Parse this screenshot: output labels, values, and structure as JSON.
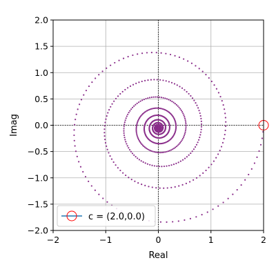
{
  "chart_data": {
    "type": "scatter",
    "title": "",
    "xlabel": "Real",
    "ylabel": "Imag",
    "xlim": [
      -2,
      2
    ],
    "ylim": [
      -2,
      2
    ],
    "xticks": [
      -2,
      -1,
      0,
      1,
      2
    ],
    "yticks": [
      -2.0,
      -1.5,
      -1.0,
      -0.5,
      0.0,
      0.5,
      1.0,
      1.5,
      2.0
    ],
    "xtick_labels": [
      "−2",
      "−1",
      "0",
      "1",
      "2"
    ],
    "ytick_labels": [
      "−2.0",
      "−1.5",
      "−1.0",
      "−0.5",
      "0.0",
      "0.5",
      "1.0",
      "1.5",
      "2.0"
    ],
    "grid": true,
    "reference_lines": {
      "x": 0,
      "y": 0,
      "style": "dotted",
      "color": "#000000"
    },
    "series": [
      {
        "kind": "spiral_points",
        "color": "#8b2f8b",
        "marker_size": 1.1,
        "description_values": {
          "start": [
            2.0,
            0.0
          ],
          "turn_radius_ratio": 0.64,
          "angular_step_degrees": -3.6,
          "point_count": 1300,
          "center": [
            0.0,
            -0.05
          ]
        }
      },
      {
        "name": "c = (2.0,0.0)",
        "kind": "marker",
        "x": 2.0,
        "y": 0.0,
        "color": "#ff0000",
        "marker": "open-circle"
      }
    ],
    "legend": {
      "placement": "lower-left",
      "entries": [
        {
          "label": "c = (2.0,0.0)",
          "line_color": "#1f77b4",
          "marker_color": "#ff0000"
        }
      ]
    }
  },
  "colors": {
    "grid": "#b0b0b0",
    "spiral": "#8b2f8b",
    "marker": "#ff0000",
    "legend_line": "#1f77b4"
  }
}
